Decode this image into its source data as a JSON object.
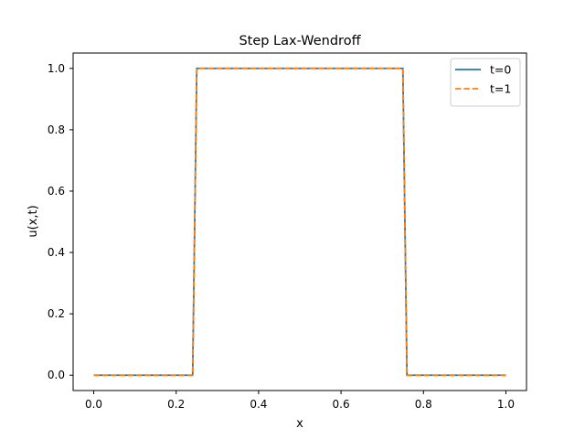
{
  "chart_data": {
    "type": "line",
    "title": "Step Lax-Wendroff",
    "xlabel": "x",
    "ylabel": "u(x,t)",
    "xlim": [
      -0.05,
      1.05
    ],
    "ylim": [
      -0.05,
      1.05
    ],
    "xticks": [
      0.0,
      0.2,
      0.4,
      0.6,
      0.8,
      1.0
    ],
    "xtick_labels": [
      "0.0",
      "0.2",
      "0.4",
      "0.6",
      "0.8",
      "1.0"
    ],
    "yticks": [
      0.0,
      0.2,
      0.4,
      0.6,
      0.8,
      1.0
    ],
    "ytick_labels": [
      "0.0",
      "0.2",
      "0.4",
      "0.6",
      "0.8",
      "1.0"
    ],
    "grid": false,
    "legend_position": "top-right",
    "series": [
      {
        "name": "t=0",
        "color": "#1f77b4",
        "linestyle": "solid",
        "x": [
          0.0,
          0.24,
          0.25,
          0.75,
          0.76,
          1.0
        ],
        "y": [
          0.0,
          0.0,
          1.0,
          1.0,
          0.0,
          0.0
        ]
      },
      {
        "name": "t=1",
        "color": "#ff7f0e",
        "linestyle": "dashed",
        "x": [
          0.0,
          0.24,
          0.25,
          0.75,
          0.76,
          1.0
        ],
        "y": [
          0.0,
          0.0,
          1.0,
          1.0,
          0.0,
          0.0
        ]
      }
    ]
  }
}
